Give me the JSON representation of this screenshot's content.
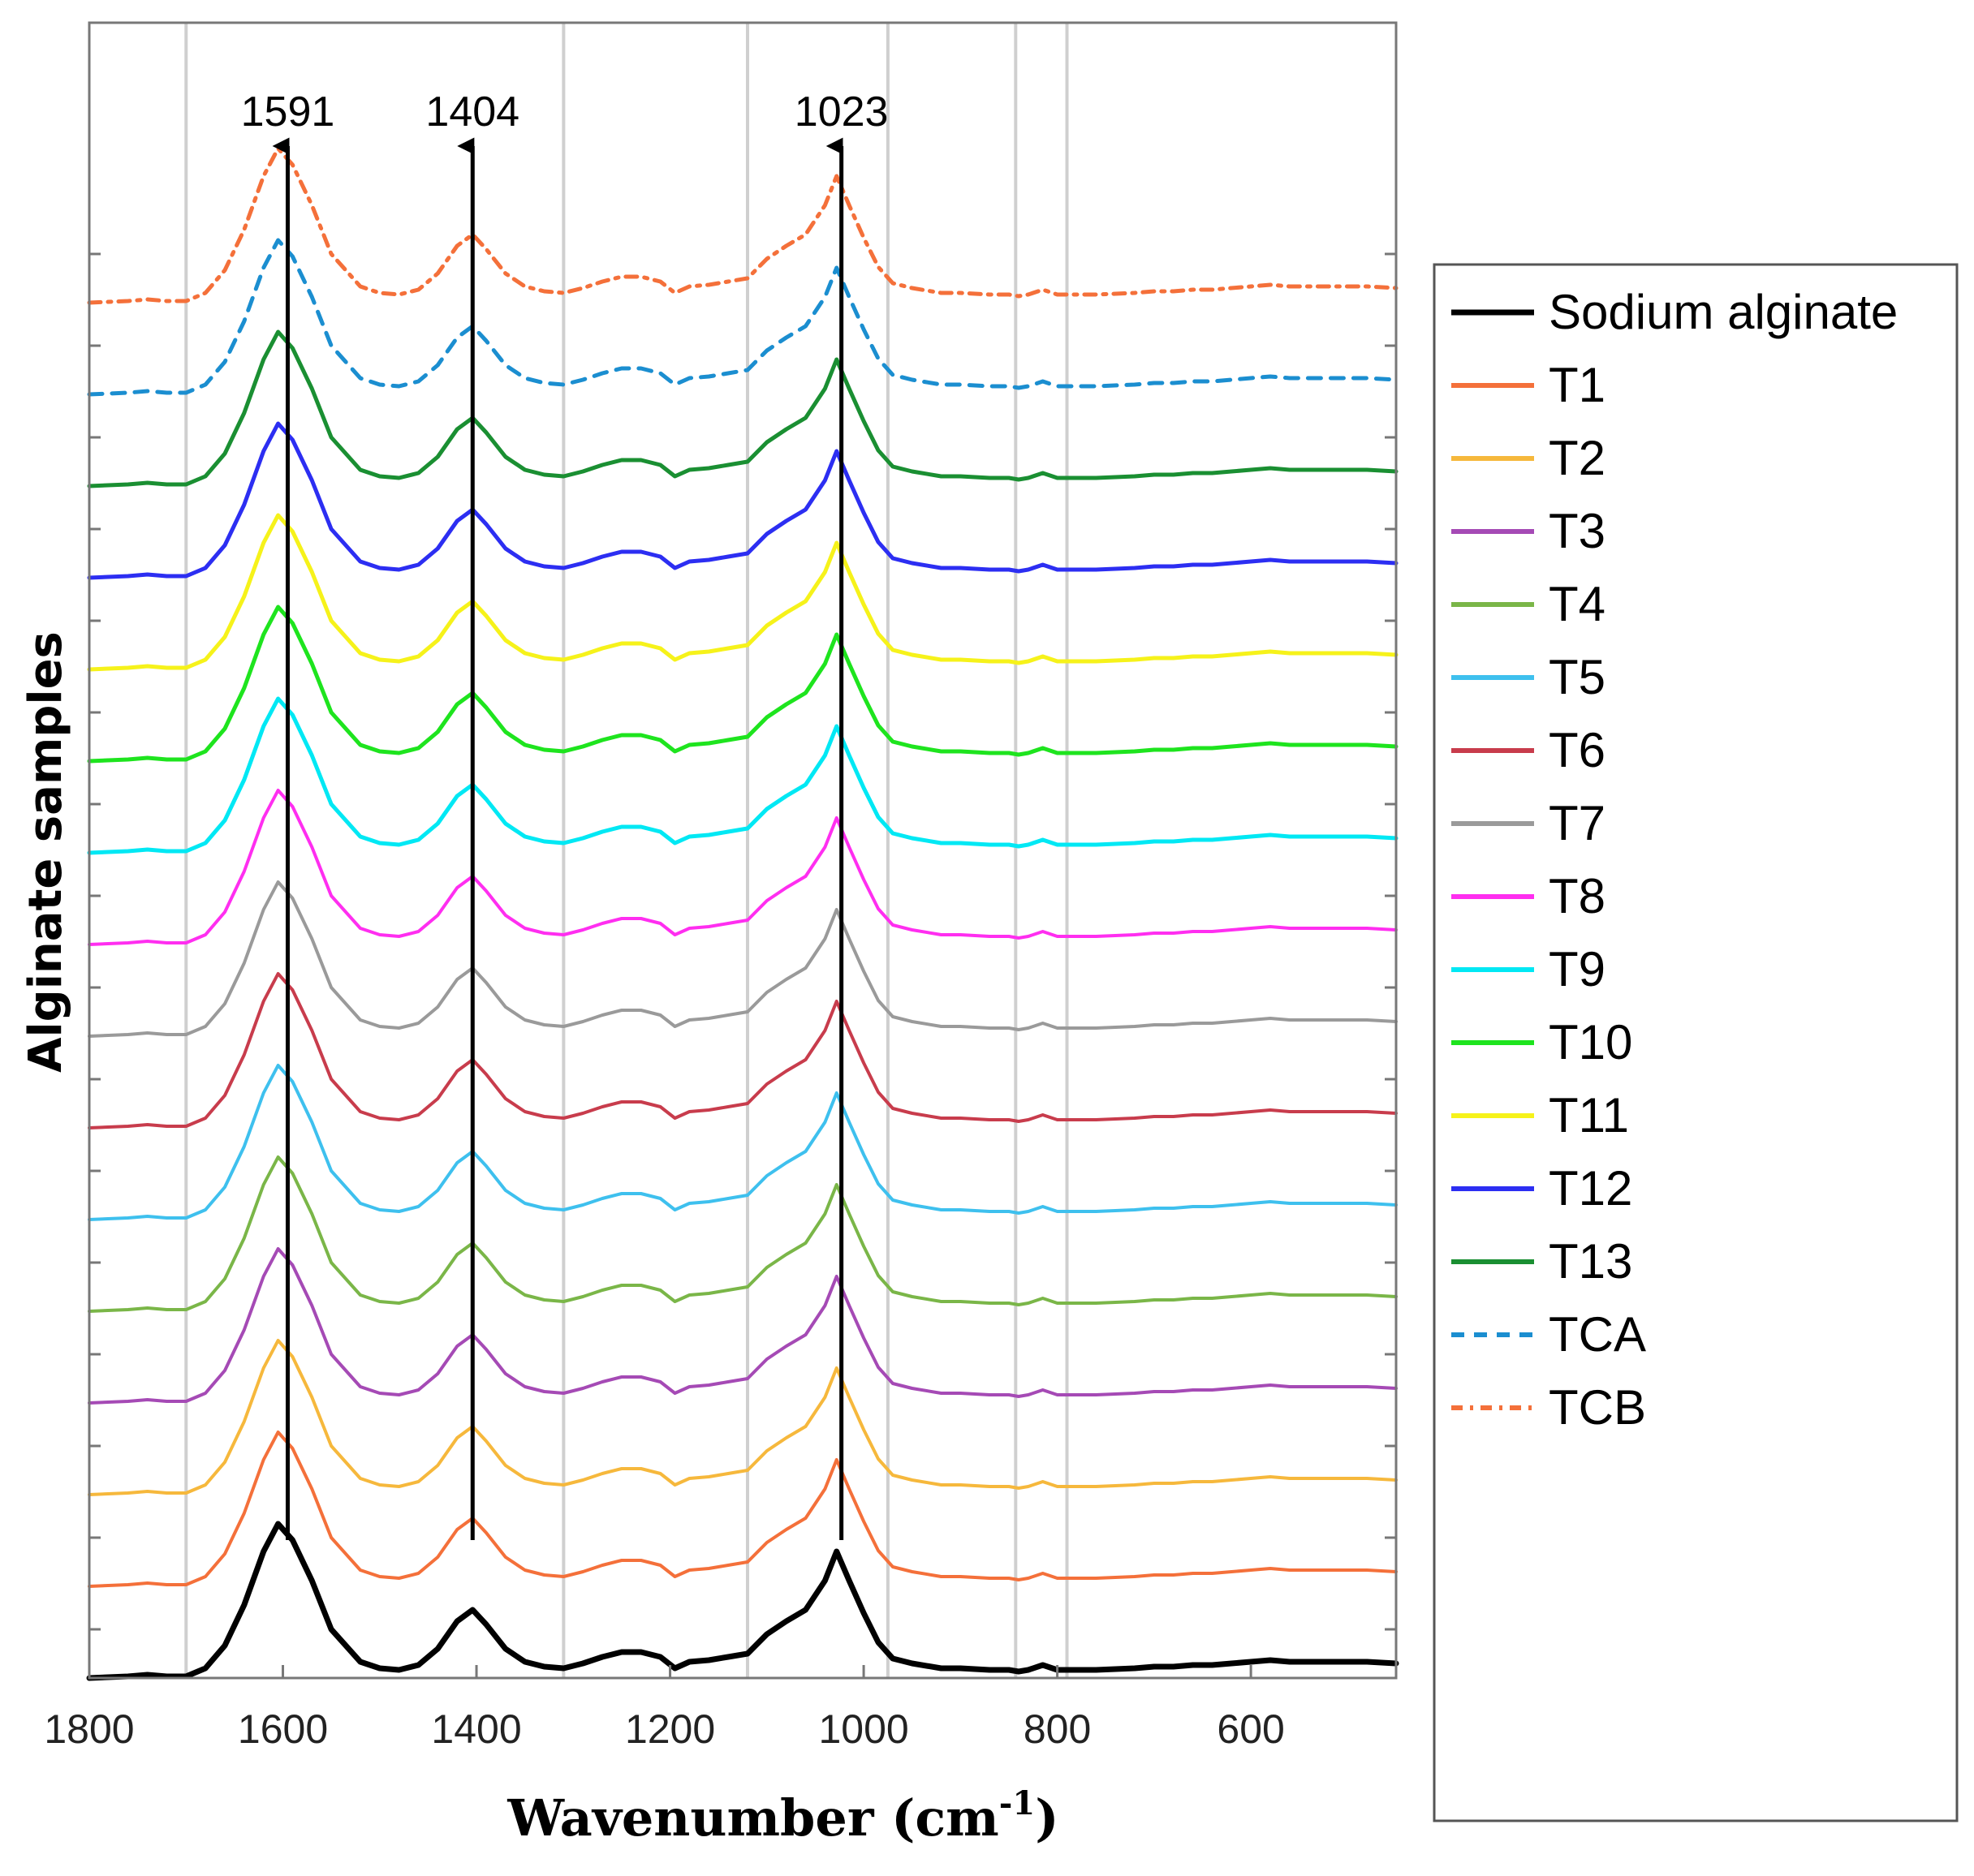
{
  "chart_data": {
    "type": "line",
    "title": "",
    "xlabel": "Wavenumber (cm",
    "xlabel_sup": "-1",
    "xlabel_close": ")",
    "ylabel": "Alginate samples",
    "xlim": [
      1800,
      450
    ],
    "x_reversed": true,
    "x_ticks": [
      "1800",
      "1600",
      "1400",
      "1200",
      "1000",
      "800",
      "600"
    ],
    "x_tick_values": [
      1800,
      1600,
      1400,
      1200,
      1000,
      800,
      600
    ],
    "vertical_guides": [
      1700,
      1310,
      1120,
      975,
      843,
      790
    ],
    "peak_annotations": [
      {
        "label": "1591",
        "x": 1595
      },
      {
        "label": "1404",
        "x": 1404
      },
      {
        "label": "1023",
        "x": 1023
      }
    ],
    "shape_points": {
      "x": [
        1800,
        1760,
        1740,
        1720,
        1700,
        1680,
        1660,
        1640,
        1620,
        1605,
        1590,
        1570,
        1550,
        1520,
        1500,
        1480,
        1460,
        1440,
        1420,
        1404,
        1390,
        1370,
        1350,
        1330,
        1310,
        1290,
        1270,
        1250,
        1230,
        1210,
        1195,
        1180,
        1160,
        1140,
        1120,
        1100,
        1080,
        1060,
        1040,
        1028,
        1015,
        1000,
        985,
        970,
        950,
        920,
        900,
        870,
        850,
        840,
        830,
        815,
        800,
        780,
        760,
        720,
        700,
        680,
        660,
        640,
        620,
        600,
        580,
        560,
        540,
        520,
        500,
        480,
        450
      ],
      "y": [
        0,
        0.01,
        0.02,
        0.01,
        0.01,
        0.06,
        0.2,
        0.45,
        0.78,
        0.95,
        0.85,
        0.6,
        0.3,
        0.1,
        0.06,
        0.05,
        0.08,
        0.18,
        0.35,
        0.42,
        0.33,
        0.18,
        0.1,
        0.07,
        0.06,
        0.09,
        0.13,
        0.16,
        0.16,
        0.13,
        0.06,
        0.1,
        0.11,
        0.13,
        0.15,
        0.27,
        0.35,
        0.42,
        0.6,
        0.78,
        0.6,
        0.4,
        0.22,
        0.12,
        0.09,
        0.06,
        0.06,
        0.05,
        0.05,
        0.04,
        0.05,
        0.08,
        0.05,
        0.05,
        0.05,
        0.06,
        0.07,
        0.07,
        0.08,
        0.08,
        0.09,
        0.1,
        0.11,
        0.1,
        0.1,
        0.1,
        0.1,
        0.1,
        0.09
      ]
    },
    "series": [
      {
        "name": "Sodium alginate",
        "color": "#000000",
        "dash": "solid",
        "width": 7,
        "offset": 0
      },
      {
        "name": "T1",
        "color": "#f4703a",
        "dash": "solid",
        "width": 4,
        "offset": 1
      },
      {
        "name": "T2",
        "color": "#f6b83c",
        "dash": "solid",
        "width": 4,
        "offset": 2
      },
      {
        "name": "T3",
        "color": "#a54ab5",
        "dash": "solid",
        "width": 4,
        "offset": 3
      },
      {
        "name": "T4",
        "color": "#7ab648",
        "dash": "solid",
        "width": 4,
        "offset": 4
      },
      {
        "name": "T5",
        "color": "#3ec0ee",
        "dash": "solid",
        "width": 4,
        "offset": 5
      },
      {
        "name": "T6",
        "color": "#c83c4c",
        "dash": "solid",
        "width": 4,
        "offset": 6
      },
      {
        "name": "T7",
        "color": "#9a9a9a",
        "dash": "solid",
        "width": 4,
        "offset": 7
      },
      {
        "name": "T8",
        "color": "#ff2ef0",
        "dash": "solid",
        "width": 4,
        "offset": 8
      },
      {
        "name": "T9",
        "color": "#00e8f4",
        "dash": "solid",
        "width": 5,
        "offset": 9
      },
      {
        "name": "T10",
        "color": "#1ee41e",
        "dash": "solid",
        "width": 5,
        "offset": 10
      },
      {
        "name": "T11",
        "color": "#f6f21a",
        "dash": "solid",
        "width": 5,
        "offset": 11
      },
      {
        "name": "T12",
        "color": "#2c2ef2",
        "dash": "solid",
        "width": 5,
        "offset": 12
      },
      {
        "name": "T13",
        "color": "#1a8f32",
        "dash": "solid",
        "width": 5,
        "offset": 13
      },
      {
        "name": "TCA",
        "color": "#1b8ed0",
        "dash": "dash",
        "width": 5,
        "offset": 14
      },
      {
        "name": "TCB",
        "color": "#f4703a",
        "dash": "dashdot",
        "width": 5,
        "offset": 15
      }
    ],
    "legend_position": "right"
  }
}
